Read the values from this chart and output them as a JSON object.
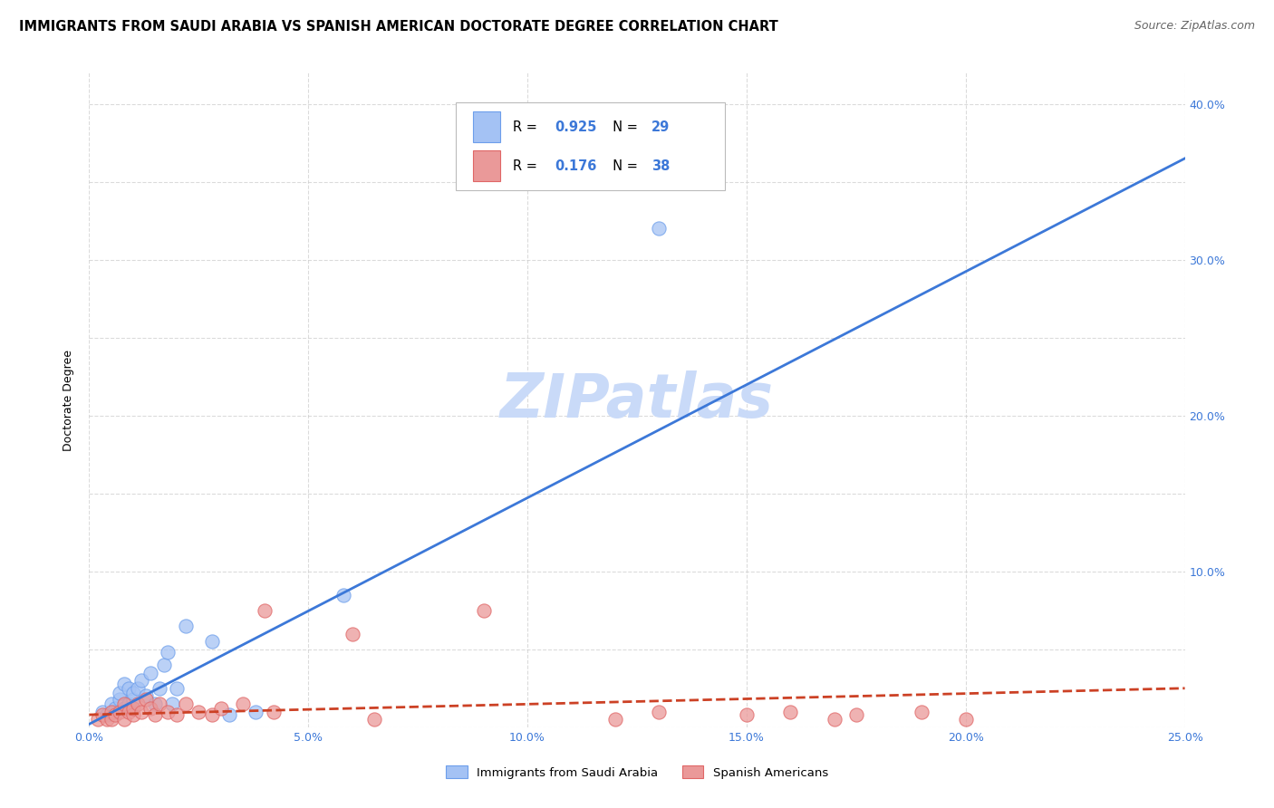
{
  "title": "IMMIGRANTS FROM SAUDI ARABIA VS SPANISH AMERICAN DOCTORATE DEGREE CORRELATION CHART",
  "source": "Source: ZipAtlas.com",
  "ylabel": "Doctorate Degree",
  "xlim": [
    0.0,
    0.25
  ],
  "ylim": [
    0.0,
    0.42
  ],
  "xtick_values": [
    0.0,
    0.05,
    0.1,
    0.15,
    0.2,
    0.25
  ],
  "ytick_values": [
    0.0,
    0.05,
    0.1,
    0.15,
    0.2,
    0.25,
    0.3,
    0.35,
    0.4
  ],
  "ytick_show": [
    0.1,
    0.2,
    0.3,
    0.4
  ],
  "blue_fill_color": "#a4c2f4",
  "blue_edge_color": "#6d9eeb",
  "pink_fill_color": "#ea9999",
  "pink_edge_color": "#e06666",
  "blue_line_color": "#3c78d8",
  "pink_line_color": "#cc4125",
  "legend_r_blue": "0.925",
  "legend_n_blue": "29",
  "legend_r_pink": "0.176",
  "legend_n_pink": "38",
  "legend_value_color": "#3c78d8",
  "watermark": "ZIPatlas",
  "watermark_color": "#c9daf8",
  "blue_scatter_x": [
    0.003,
    0.004,
    0.005,
    0.006,
    0.006,
    0.007,
    0.007,
    0.008,
    0.008,
    0.009,
    0.009,
    0.01,
    0.01,
    0.011,
    0.012,
    0.013,
    0.014,
    0.015,
    0.016,
    0.017,
    0.018,
    0.019,
    0.02,
    0.022,
    0.028,
    0.032,
    0.038,
    0.058,
    0.13
  ],
  "blue_scatter_y": [
    0.01,
    0.008,
    0.015,
    0.01,
    0.012,
    0.018,
    0.022,
    0.012,
    0.028,
    0.015,
    0.025,
    0.018,
    0.022,
    0.025,
    0.03,
    0.02,
    0.035,
    0.015,
    0.025,
    0.04,
    0.048,
    0.015,
    0.025,
    0.065,
    0.055,
    0.008,
    0.01,
    0.085,
    0.32
  ],
  "pink_scatter_x": [
    0.002,
    0.003,
    0.004,
    0.005,
    0.005,
    0.006,
    0.007,
    0.008,
    0.008,
    0.009,
    0.01,
    0.01,
    0.011,
    0.012,
    0.013,
    0.014,
    0.015,
    0.016,
    0.018,
    0.02,
    0.022,
    0.025,
    0.028,
    0.03,
    0.035,
    0.04,
    0.042,
    0.06,
    0.065,
    0.09,
    0.12,
    0.13,
    0.15,
    0.16,
    0.17,
    0.175,
    0.19,
    0.2
  ],
  "pink_scatter_y": [
    0.005,
    0.008,
    0.005,
    0.01,
    0.005,
    0.008,
    0.01,
    0.005,
    0.015,
    0.01,
    0.008,
    0.012,
    0.015,
    0.01,
    0.018,
    0.012,
    0.008,
    0.015,
    0.01,
    0.008,
    0.015,
    0.01,
    0.008,
    0.012,
    0.015,
    0.075,
    0.01,
    0.06,
    0.005,
    0.075,
    0.005,
    0.01,
    0.008,
    0.01,
    0.005,
    0.008,
    0.01,
    0.005
  ],
  "blue_line_x": [
    0.0,
    0.25
  ],
  "blue_line_y": [
    0.002,
    0.365
  ],
  "pink_line_x": [
    0.0,
    0.25
  ],
  "pink_line_y": [
    0.008,
    0.025
  ],
  "grid_color": "#cccccc",
  "grid_alpha": 0.7,
  "background_color": "#ffffff",
  "title_fontsize": 10.5,
  "axis_label_fontsize": 9,
  "tick_fontsize": 9,
  "source_fontsize": 9,
  "scatter_size": 120,
  "scatter_alpha": 0.75
}
